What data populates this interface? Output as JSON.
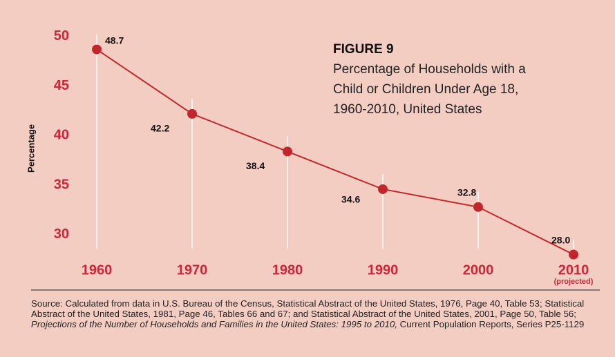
{
  "chart_data": {
    "type": "line",
    "title": "FIGURE 9",
    "subtitle": [
      "Percentage of Households with a",
      "Child or Children Under Age 18,",
      "1960-2010, United States"
    ],
    "y_label": "Percentage",
    "categories": [
      "1960",
      "1970",
      "1980",
      "1990",
      "2000",
      "2010"
    ],
    "annotation": "(projected)",
    "values": [
      48.7,
      42.2,
      38.4,
      34.6,
      32.8,
      28.0
    ],
    "value_labels": [
      "48.7",
      "42.2",
      "38.4",
      "34.6",
      "32.8",
      "28.0"
    ],
    "color": "#c0272d",
    "ylim": [
      27,
      51
    ],
    "yticks": [
      30,
      35,
      40,
      45,
      50
    ],
    "source": [
      "Source: Calculated from data in U.S. Bureau of the Census, Statistical Abstract of the United States, 1976, Page 40, Table 53; Statistical Abstract of the United States, 1981, Page 46, Tables 66 and 67; and Statistical Abstract of the United States, 2001, Page 50, Table 56; ",
      "Projections of the Number of Households and Families in the United States: 1995 to 2010,",
      " Current Population Reports, Series P25-1129"
    ]
  }
}
